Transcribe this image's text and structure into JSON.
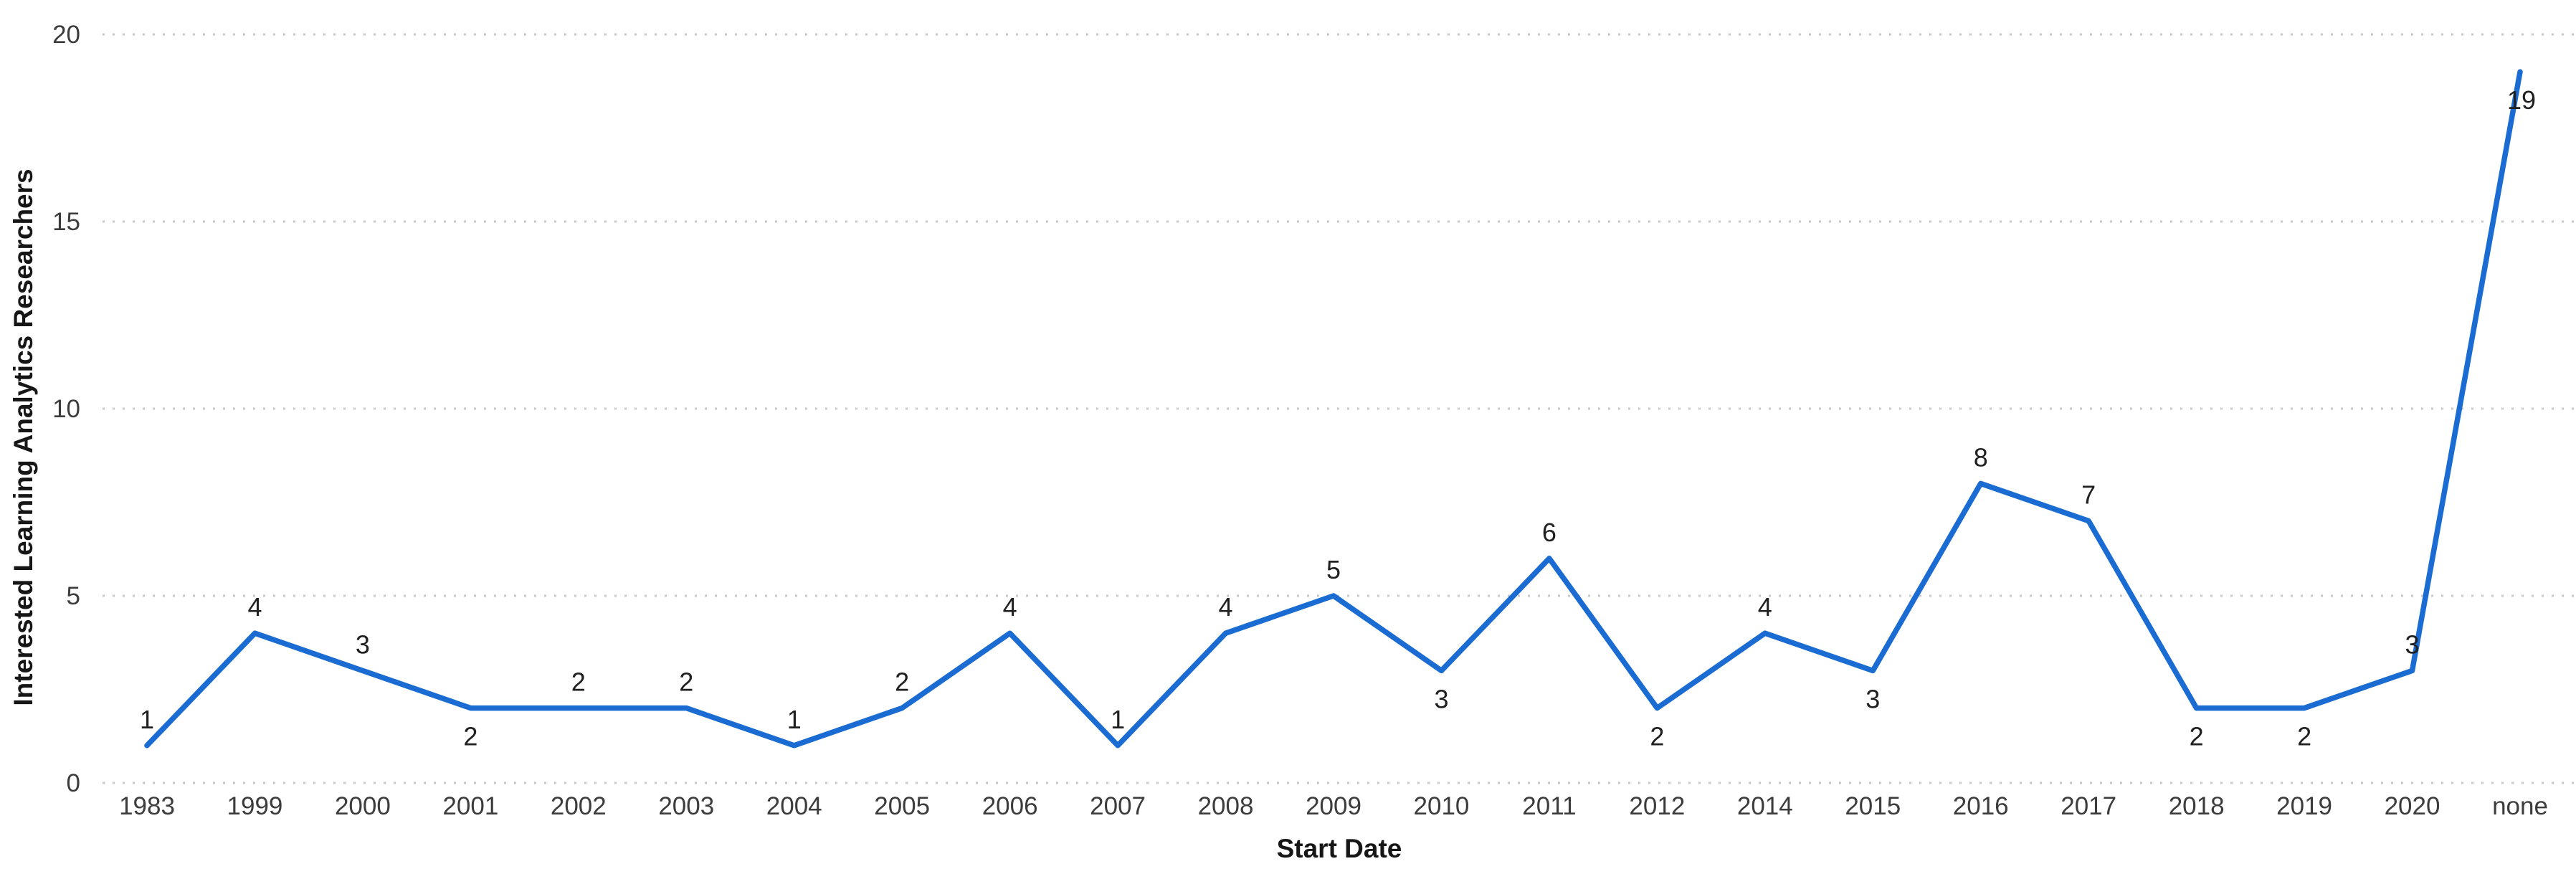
{
  "chart_data": {
    "type": "line",
    "title": "",
    "xlabel": "Start Date",
    "ylabel": "Interested Learning Analytics Researchers",
    "categories": [
      "1983",
      "1999",
      "2000",
      "2001",
      "2002",
      "2003",
      "2004",
      "2005",
      "2006",
      "2007",
      "2008",
      "2009",
      "2010",
      "2011",
      "2012",
      "2014",
      "2015",
      "2016",
      "2017",
      "2018",
      "2019",
      "2020",
      "none"
    ],
    "values": [
      1,
      4,
      3,
      2,
      2,
      2,
      1,
      2,
      4,
      1,
      4,
      5,
      3,
      6,
      2,
      4,
      3,
      8,
      7,
      2,
      2,
      3,
      19
    ],
    "data_labels": [
      "1",
      "4",
      "3",
      "2",
      "2",
      "2",
      "1",
      "2",
      "4",
      "1",
      "4",
      "5",
      "3",
      "6",
      "2",
      "4",
      "3",
      "8",
      "7",
      "2",
      "2",
      "3",
      "19"
    ],
    "label_positions": [
      "above",
      "above",
      "above",
      "below",
      "above",
      "above",
      "above",
      "above",
      "above",
      "above",
      "above",
      "above",
      "below",
      "above",
      "below",
      "above",
      "below",
      "above",
      "above",
      "below",
      "below",
      "above",
      "on-line"
    ],
    "y_ticks": [
      0,
      5,
      10,
      15,
      20
    ],
    "y_tick_labels": [
      "0",
      "5",
      "10",
      "15",
      "20"
    ],
    "ylim": [
      0,
      20
    ],
    "grid": "dotted-horizontal",
    "legend_position": "none",
    "colors": {
      "line": "#1a6cd3",
      "gridline": "#c9c9c9",
      "tick_text": "#3c3c3c",
      "data_label_text": "#202020",
      "axis_title_text": "#161616",
      "background": "#ffffff"
    }
  }
}
